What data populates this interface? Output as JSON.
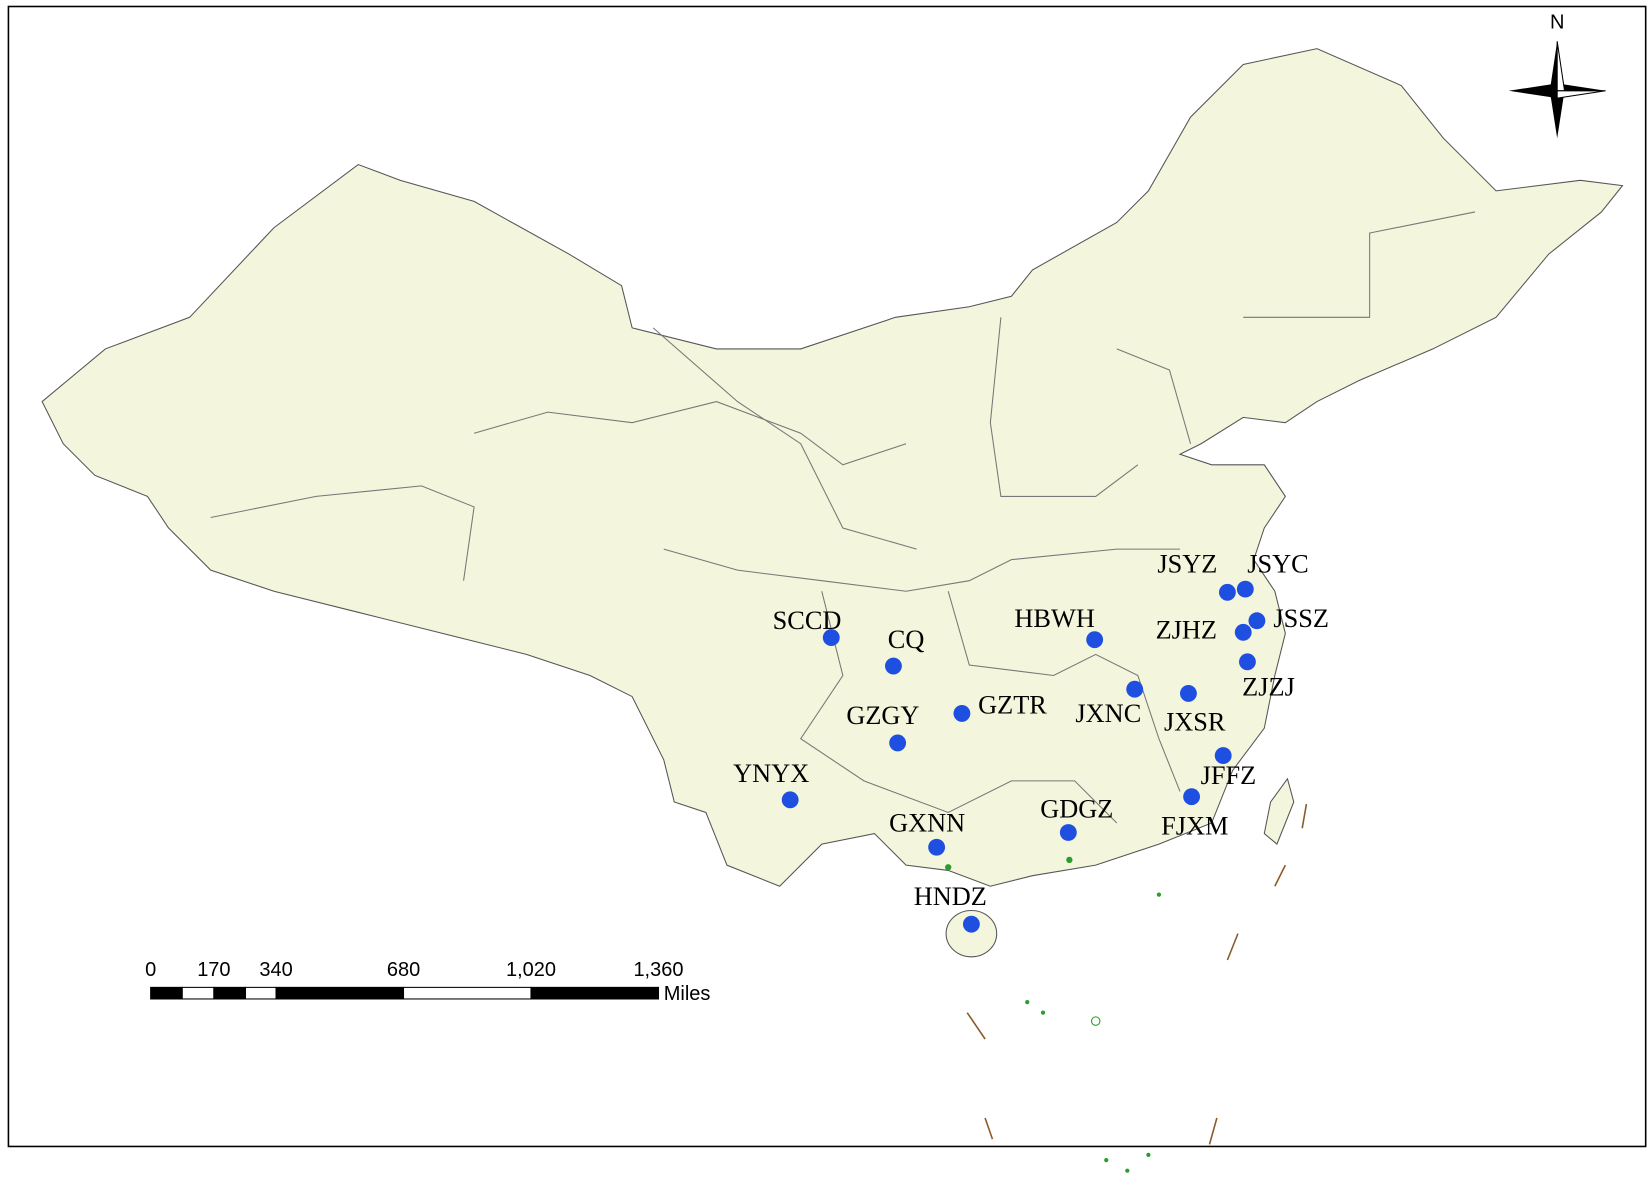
{
  "north": "N",
  "scale_bar": {
    "ticks": [
      "0",
      "170",
      "340",
      "680",
      "1,020",
      "1,360"
    ],
    "unit": "Miles"
  },
  "sites": [
    {
      "label": "SCCD"
    },
    {
      "label": "CQ"
    },
    {
      "label": "GZGY"
    },
    {
      "label": "GZTR"
    },
    {
      "label": "YNYX"
    },
    {
      "label": "GXNN"
    },
    {
      "label": "HNDZ"
    },
    {
      "label": "GDGZ"
    },
    {
      "label": "HBWH"
    },
    {
      "label": "JXNC"
    },
    {
      "label": "JXSR"
    },
    {
      "label": "JFFZ"
    },
    {
      "label": "FJXM"
    },
    {
      "label": "ZJHZ"
    },
    {
      "label": "ZJZJ"
    },
    {
      "label": "JSYZ"
    },
    {
      "label": "JSYC"
    },
    {
      "label": "JSSZ"
    }
  ]
}
